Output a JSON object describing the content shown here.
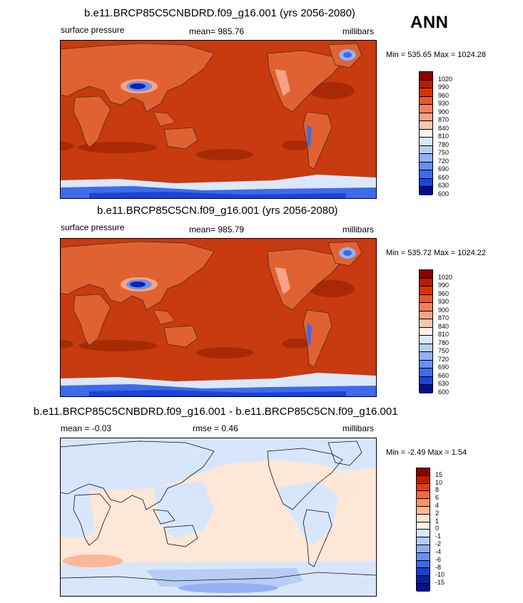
{
  "season": "ANN",
  "panels": [
    {
      "title": "b.e11.BRCP85C5CNBDRD.f09_g16.001 (yrs 2056-2080)",
      "left_label": "surface pressure",
      "center_label": "mean= 985.76",
      "right_label": "millibars",
      "minmax": "Min = 535.65 Max = 1024.28",
      "levels": [
        "1020",
        "990",
        "960",
        "930",
        "900",
        "870",
        "840",
        "810",
        "780",
        "750",
        "720",
        "690",
        "660",
        "630",
        "600"
      ]
    },
    {
      "title": "b.e11.BRCP85C5CN.f09_g16.001 (yrs 2056-2080)",
      "left_label": "surface pressure",
      "center_label": "mean= 985.79",
      "right_label": "millibars",
      "minmax": "Min = 535.72 Max = 1024.22",
      "levels": [
        "1020",
        "990",
        "960",
        "930",
        "900",
        "870",
        "840",
        "810",
        "780",
        "750",
        "720",
        "690",
        "660",
        "630",
        "600"
      ]
    },
    {
      "title": "b.e11.BRCP85C5CNBDRD.f09_g16.001 - b.e11.BRCP85C5CN.f09_g16.001",
      "left_label": "mean =  -0.03",
      "center_label": "rmse =   0.46",
      "right_label": "millibars",
      "minmax": "Min =  -2.49 Max =   1.54",
      "levels": [
        "15",
        "10",
        "8",
        "6",
        "4",
        "2",
        "1",
        "0",
        "-1",
        "-2",
        "-4",
        "-6",
        "-8",
        "-10",
        "-15"
      ]
    }
  ],
  "colors": {
    "abs_scale": [
      "#8b0000",
      "#b71c00",
      "#d43500",
      "#e25a2a",
      "#f0805a",
      "#f6a385",
      "#fbc6b0",
      "#fdf3ea",
      "#dbe8fb",
      "#b9cff8",
      "#92b1f3",
      "#6b8ff0",
      "#3f6aea",
      "#1c44d6",
      "#0a23b0",
      "#050f87"
    ],
    "diff_scale": [
      "#8b0000",
      "#c21d00",
      "#e0400f",
      "#ef6b3c",
      "#f79468",
      "#fbb899",
      "#fde4d3",
      "#fdf3ea",
      "#d7e6fb",
      "#b4ccf7",
      "#8eaef2",
      "#6690ef",
      "#3c6ae8",
      "#1a3fcf",
      "#08209f",
      "#050f87"
    ],
    "ocean_high": "#c83a10",
    "ocean_dark": "#a82a05",
    "land": "#e06232",
    "diff_bg": "#fde7d6",
    "diff_blue": "#d8e6fb",
    "diff_mid": "#b7cdf5"
  }
}
